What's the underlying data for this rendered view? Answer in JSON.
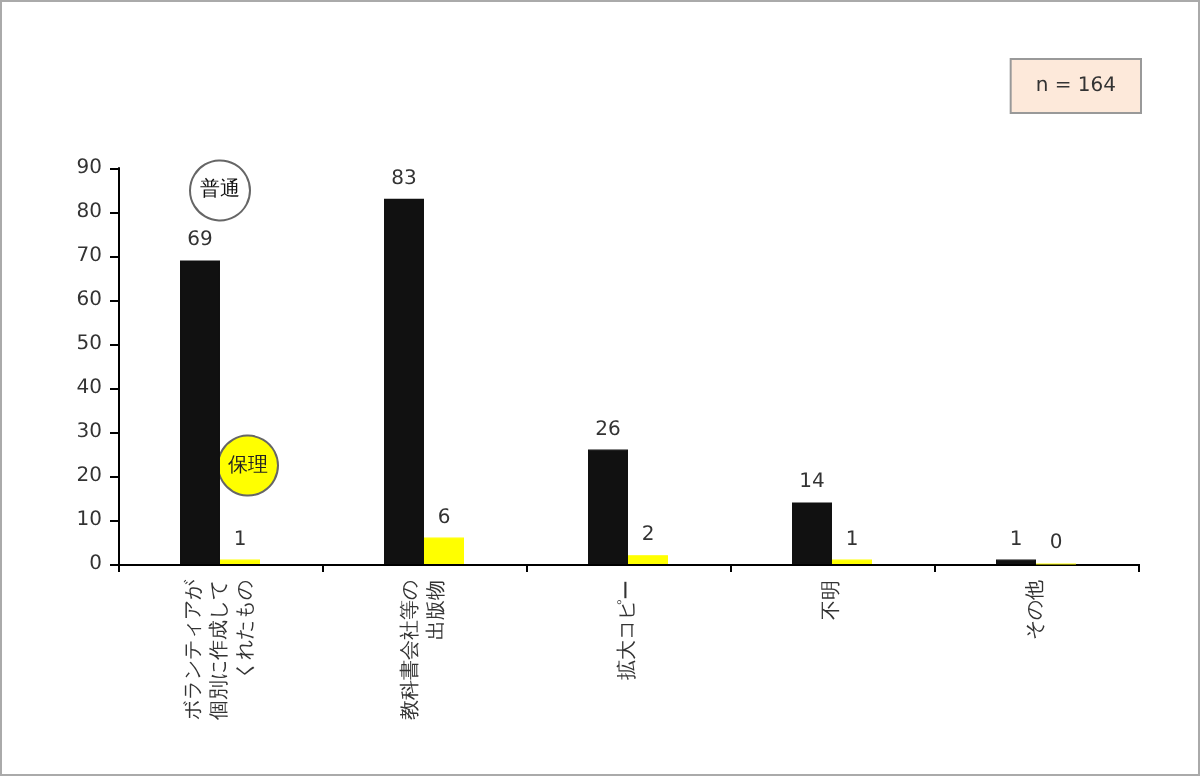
{
  "chart_data": {
    "type": "bar",
    "categories": [
      "ボランティアが個別に作成してくれたもの",
      "教科書会社等の出版物",
      "拡大コピー",
      "不明",
      "その他"
    ],
    "series": [
      {
        "name": "普通",
        "color": "#111111",
        "values": [
          69,
          83,
          26,
          14,
          1
        ]
      },
      {
        "name": "保理",
        "color": "#ffff00",
        "values": [
          1,
          6,
          2,
          1,
          0
        ]
      }
    ],
    "ylim": [
      0,
      90
    ],
    "yticks": [
      0,
      10,
      20,
      30,
      40,
      50,
      60,
      70,
      80,
      90
    ],
    "data_labels": true,
    "grid": false,
    "legend": false,
    "annotations": [
      "n = 164"
    ]
  }
}
